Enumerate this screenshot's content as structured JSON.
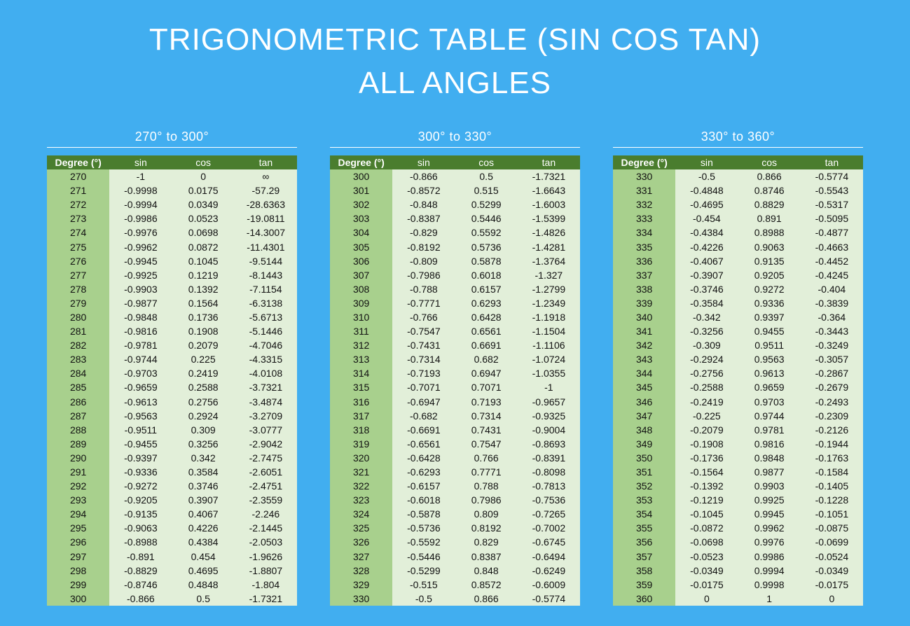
{
  "header": {
    "title_line1": "TRIGONOMETRIC TABLE (SIN COS TAN)",
    "title_line2": "ALL ANGLES"
  },
  "tables": [
    {
      "heading": "270° to 300°",
      "columns": [
        "Degree (°)",
        "sin",
        "cos",
        "tan"
      ],
      "rows": [
        [
          "270",
          "-1",
          "0",
          "∞"
        ],
        [
          "271",
          "-0.9998",
          "0.0175",
          "-57.29"
        ],
        [
          "272",
          "-0.9994",
          "0.0349",
          "-28.6363"
        ],
        [
          "273",
          "-0.9986",
          "0.0523",
          "-19.0811"
        ],
        [
          "274",
          "-0.9976",
          "0.0698",
          "-14.3007"
        ],
        [
          "275",
          "-0.9962",
          "0.0872",
          "-11.4301"
        ],
        [
          "276",
          "-0.9945",
          "0.1045",
          "-9.5144"
        ],
        [
          "277",
          "-0.9925",
          "0.1219",
          "-8.1443"
        ],
        [
          "278",
          "-0.9903",
          "0.1392",
          "-7.1154"
        ],
        [
          "279",
          "-0.9877",
          "0.1564",
          "-6.3138"
        ],
        [
          "280",
          "-0.9848",
          "0.1736",
          "-5.6713"
        ],
        [
          "281",
          "-0.9816",
          "0.1908",
          "-5.1446"
        ],
        [
          "282",
          "-0.9781",
          "0.2079",
          "-4.7046"
        ],
        [
          "283",
          "-0.9744",
          "0.225",
          "-4.3315"
        ],
        [
          "284",
          "-0.9703",
          "0.2419",
          "-4.0108"
        ],
        [
          "285",
          "-0.9659",
          "0.2588",
          "-3.7321"
        ],
        [
          "286",
          "-0.9613",
          "0.2756",
          "-3.4874"
        ],
        [
          "287",
          "-0.9563",
          "0.2924",
          "-3.2709"
        ],
        [
          "288",
          "-0.9511",
          "0.309",
          "-3.0777"
        ],
        [
          "289",
          "-0.9455",
          "0.3256",
          "-2.9042"
        ],
        [
          "290",
          "-0.9397",
          "0.342",
          "-2.7475"
        ],
        [
          "291",
          "-0.9336",
          "0.3584",
          "-2.6051"
        ],
        [
          "292",
          "-0.9272",
          "0.3746",
          "-2.4751"
        ],
        [
          "293",
          "-0.9205",
          "0.3907",
          "-2.3559"
        ],
        [
          "294",
          "-0.9135",
          "0.4067",
          "-2.246"
        ],
        [
          "295",
          "-0.9063",
          "0.4226",
          "-2.1445"
        ],
        [
          "296",
          "-0.8988",
          "0.4384",
          "-2.0503"
        ],
        [
          "297",
          "-0.891",
          "0.454",
          "-1.9626"
        ],
        [
          "298",
          "-0.8829",
          "0.4695",
          "-1.8807"
        ],
        [
          "299",
          "-0.8746",
          "0.4848",
          "-1.804"
        ],
        [
          "300",
          "-0.866",
          "0.5",
          "-1.7321"
        ]
      ]
    },
    {
      "heading": "300° to 330°",
      "columns": [
        "Degree (°)",
        "sin",
        "cos",
        "tan"
      ],
      "rows": [
        [
          "300",
          "-0.866",
          "0.5",
          "-1.7321"
        ],
        [
          "301",
          "-0.8572",
          "0.515",
          "-1.6643"
        ],
        [
          "302",
          "-0.848",
          "0.5299",
          "-1.6003"
        ],
        [
          "303",
          "-0.8387",
          "0.5446",
          "-1.5399"
        ],
        [
          "304",
          "-0.829",
          "0.5592",
          "-1.4826"
        ],
        [
          "305",
          "-0.8192",
          "0.5736",
          "-1.4281"
        ],
        [
          "306",
          "-0.809",
          "0.5878",
          "-1.3764"
        ],
        [
          "307",
          "-0.7986",
          "0.6018",
          "-1.327"
        ],
        [
          "308",
          "-0.788",
          "0.6157",
          "-1.2799"
        ],
        [
          "309",
          "-0.7771",
          "0.6293",
          "-1.2349"
        ],
        [
          "310",
          "-0.766",
          "0.6428",
          "-1.1918"
        ],
        [
          "311",
          "-0.7547",
          "0.6561",
          "-1.1504"
        ],
        [
          "312",
          "-0.7431",
          "0.6691",
          "-1.1106"
        ],
        [
          "313",
          "-0.7314",
          "0.682",
          "-1.0724"
        ],
        [
          "314",
          "-0.7193",
          "0.6947",
          "-1.0355"
        ],
        [
          "315",
          "-0.7071",
          "0.7071",
          "-1"
        ],
        [
          "316",
          "-0.6947",
          "0.7193",
          "-0.9657"
        ],
        [
          "317",
          "-0.682",
          "0.7314",
          "-0.9325"
        ],
        [
          "318",
          "-0.6691",
          "0.7431",
          "-0.9004"
        ],
        [
          "319",
          "-0.6561",
          "0.7547",
          "-0.8693"
        ],
        [
          "320",
          "-0.6428",
          "0.766",
          "-0.8391"
        ],
        [
          "321",
          "-0.6293",
          "0.7771",
          "-0.8098"
        ],
        [
          "322",
          "-0.6157",
          "0.788",
          "-0.7813"
        ],
        [
          "323",
          "-0.6018",
          "0.7986",
          "-0.7536"
        ],
        [
          "324",
          "-0.5878",
          "0.809",
          "-0.7265"
        ],
        [
          "325",
          "-0.5736",
          "0.8192",
          "-0.7002"
        ],
        [
          "326",
          "-0.5592",
          "0.829",
          "-0.6745"
        ],
        [
          "327",
          "-0.5446",
          "0.8387",
          "-0.6494"
        ],
        [
          "328",
          "-0.5299",
          "0.848",
          "-0.6249"
        ],
        [
          "329",
          "-0.515",
          "0.8572",
          "-0.6009"
        ],
        [
          "330",
          "-0.5",
          "0.866",
          "-0.5774"
        ]
      ]
    },
    {
      "heading": "330° to 360°",
      "columns": [
        "Degree (°)",
        "sin",
        "cos",
        "tan"
      ],
      "rows": [
        [
          "330",
          "-0.5",
          "0.866",
          "-0.5774"
        ],
        [
          "331",
          "-0.4848",
          "0.8746",
          "-0.5543"
        ],
        [
          "332",
          "-0.4695",
          "0.8829",
          "-0.5317"
        ],
        [
          "333",
          "-0.454",
          "0.891",
          "-0.5095"
        ],
        [
          "334",
          "-0.4384",
          "0.8988",
          "-0.4877"
        ],
        [
          "335",
          "-0.4226",
          "0.9063",
          "-0.4663"
        ],
        [
          "336",
          "-0.4067",
          "0.9135",
          "-0.4452"
        ],
        [
          "337",
          "-0.3907",
          "0.9205",
          "-0.4245"
        ],
        [
          "338",
          "-0.3746",
          "0.9272",
          "-0.404"
        ],
        [
          "339",
          "-0.3584",
          "0.9336",
          "-0.3839"
        ],
        [
          "340",
          "-0.342",
          "0.9397",
          "-0.364"
        ],
        [
          "341",
          "-0.3256",
          "0.9455",
          "-0.3443"
        ],
        [
          "342",
          "-0.309",
          "0.9511",
          "-0.3249"
        ],
        [
          "343",
          "-0.2924",
          "0.9563",
          "-0.3057"
        ],
        [
          "344",
          "-0.2756",
          "0.9613",
          "-0.2867"
        ],
        [
          "345",
          "-0.2588",
          "0.9659",
          "-0.2679"
        ],
        [
          "346",
          "-0.2419",
          "0.9703",
          "-0.2493"
        ],
        [
          "347",
          "-0.225",
          "0.9744",
          "-0.2309"
        ],
        [
          "348",
          "-0.2079",
          "0.9781",
          "-0.2126"
        ],
        [
          "349",
          "-0.1908",
          "0.9816",
          "-0.1944"
        ],
        [
          "350",
          "-0.1736",
          "0.9848",
          "-0.1763"
        ],
        [
          "351",
          "-0.1564",
          "0.9877",
          "-0.1584"
        ],
        [
          "352",
          "-0.1392",
          "0.9903",
          "-0.1405"
        ],
        [
          "353",
          "-0.1219",
          "0.9925",
          "-0.1228"
        ],
        [
          "354",
          "-0.1045",
          "0.9945",
          "-0.1051"
        ],
        [
          "355",
          "-0.0872",
          "0.9962",
          "-0.0875"
        ],
        [
          "356",
          "-0.0698",
          "0.9976",
          "-0.0699"
        ],
        [
          "357",
          "-0.0523",
          "0.9986",
          "-0.0524"
        ],
        [
          "358",
          "-0.0349",
          "0.9994",
          "-0.0349"
        ],
        [
          "359",
          "-0.0175",
          "0.9998",
          "-0.0175"
        ],
        [
          "360",
          "0",
          "1",
          "0"
        ]
      ]
    }
  ]
}
